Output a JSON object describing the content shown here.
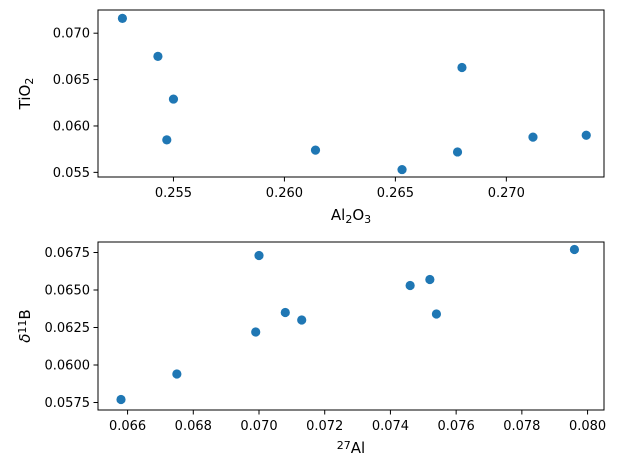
{
  "chart_data": [
    {
      "type": "scatter",
      "xlabel": {
        "main": "Al",
        "parts": [
          {
            "t": "Al",
            "s": ""
          },
          {
            "t": "2",
            "s": "sub"
          },
          {
            "t": "O",
            "s": ""
          },
          {
            "t": "3",
            "s": "sub"
          }
        ]
      },
      "ylabel": {
        "parts": [
          {
            "t": "TiO",
            "s": ""
          },
          {
            "t": "2",
            "s": "sub"
          }
        ]
      },
      "xlim": [
        0.2516,
        0.2744
      ],
      "ylim": [
        0.0545,
        0.0725
      ],
      "xticks": [
        0.255,
        0.26,
        0.265,
        0.27
      ],
      "xtick_labels": [
        "0.255",
        "0.260",
        "0.265",
        "0.270"
      ],
      "yticks": [
        0.055,
        0.06,
        0.065,
        0.07
      ],
      "ytick_labels": [
        "0.055",
        "0.060",
        "0.065",
        "0.070"
      ],
      "color": "#1f77b4",
      "points": [
        {
          "x": 0.2527,
          "y": 0.0716
        },
        {
          "x": 0.2543,
          "y": 0.0675
        },
        {
          "x": 0.255,
          "y": 0.0629
        },
        {
          "x": 0.2547,
          "y": 0.0585
        },
        {
          "x": 0.2614,
          "y": 0.0574
        },
        {
          "x": 0.2653,
          "y": 0.0553
        },
        {
          "x": 0.268,
          "y": 0.0663
        },
        {
          "x": 0.2678,
          "y": 0.0572
        },
        {
          "x": 0.2712,
          "y": 0.0588
        },
        {
          "x": 0.2736,
          "y": 0.059
        }
      ]
    },
    {
      "type": "scatter",
      "xlabel": {
        "parts": [
          {
            "t": "27",
            "s": "sup"
          },
          {
            "t": "Al",
            "s": ""
          }
        ]
      },
      "ylabel": {
        "parts": [
          {
            "t": "δ",
            "s": "ital"
          },
          {
            "t": "11",
            "s": "sup"
          },
          {
            "t": "B",
            "s": ""
          }
        ]
      },
      "xlim": [
        0.0651,
        0.0805
      ],
      "ylim": [
        0.057,
        0.0682
      ],
      "xticks": [
        0.066,
        0.068,
        0.07,
        0.072,
        0.074,
        0.076,
        0.078,
        0.08
      ],
      "xtick_labels": [
        "0.066",
        "0.068",
        "0.070",
        "0.072",
        "0.074",
        "0.076",
        "0.078",
        "0.080"
      ],
      "yticks": [
        0.0575,
        0.06,
        0.0625,
        0.065,
        0.0675
      ],
      "ytick_labels": [
        "0.0575",
        "0.0600",
        "0.0625",
        "0.0650",
        "0.0675"
      ],
      "color": "#1f77b4",
      "points": [
        {
          "x": 0.0658,
          "y": 0.0577
        },
        {
          "x": 0.0675,
          "y": 0.0594
        },
        {
          "x": 0.0699,
          "y": 0.0622
        },
        {
          "x": 0.07,
          "y": 0.0673
        },
        {
          "x": 0.0708,
          "y": 0.0635
        },
        {
          "x": 0.0713,
          "y": 0.063
        },
        {
          "x": 0.0746,
          "y": 0.0653
        },
        {
          "x": 0.0752,
          "y": 0.0657
        },
        {
          "x": 0.0754,
          "y": 0.0634
        },
        {
          "x": 0.0796,
          "y": 0.0677
        }
      ]
    }
  ]
}
